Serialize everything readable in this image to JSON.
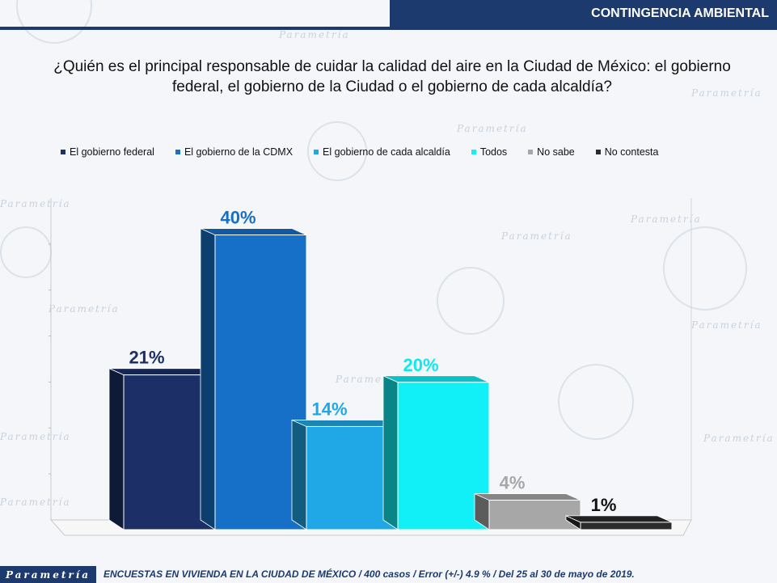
{
  "header": {
    "title": "CONTINGENCIA AMBIENTAL"
  },
  "question": "¿Quién es el principal responsable de cuidar la calidad del aire en la Ciudad de México: el gobierno federal, el gobierno de la Ciudad o el gobierno de cada alcaldía?",
  "watermark": "Parametría",
  "colors": {
    "brand": "#1d3a6e",
    "federal": "#1c2f66",
    "cdmx": "#1670c8",
    "alcaldia": "#20a8e6",
    "todos": "#10f0f6",
    "nosabe": "#a7a7a7",
    "nocontesta": "#2b2b2b"
  },
  "chart_data": {
    "type": "bar",
    "title": "",
    "xlabel": "",
    "ylabel": "",
    "ylim": [
      0,
      45
    ],
    "legend_position": "top",
    "grid": false,
    "categories": [
      "El gobierno federal",
      "El gobierno de la CDMX",
      "El gobierno de cada alcaldía",
      "Todos",
      "No sabe",
      "No contesta"
    ],
    "values": [
      21,
      40,
      14,
      20,
      4,
      1
    ],
    "value_labels": [
      "21%",
      "40%",
      "14%",
      "20%",
      "4%",
      "1%"
    ],
    "series_colors": [
      "#1c2f66",
      "#1670c8",
      "#20a8e6",
      "#10f0f6",
      "#a7a7a7",
      "#2b2b2b"
    ],
    "label_colors": [
      "#1c2f66",
      "#1670c8",
      "#20a8e6",
      "#10e8f0",
      "#a7a7a7",
      "#111111"
    ]
  },
  "footer": {
    "logo": "Parametría",
    "note": "ENCUESTAS EN VIVIENDA EN LA CIUDAD DE MÉXICO / 400 casos / Error (+/-) 4.9 % / Del 25 al 30  de mayo de 2019."
  }
}
